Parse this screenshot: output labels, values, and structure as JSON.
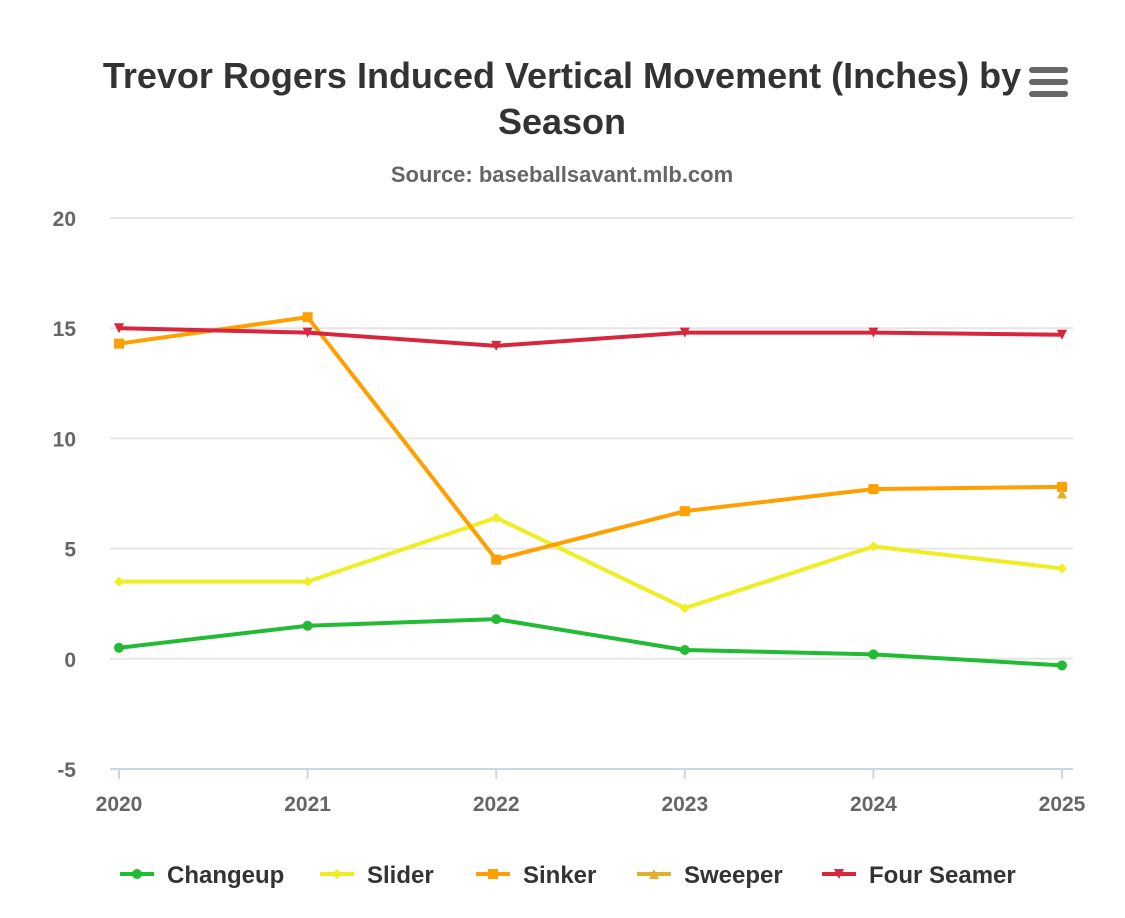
{
  "chart_data": {
    "type": "line",
    "title": "Trevor Rogers Induced Vertical Movement (Inches) by Season",
    "title_lines": [
      "Trevor Rogers Induced Vertical Movement (Inches) by",
      "Season"
    ],
    "subtitle": "Source: baseballsavant.mlb.com",
    "xlabel": "",
    "ylabel": "",
    "categories": [
      "2020",
      "2021",
      "2022",
      "2023",
      "2024",
      "2025"
    ],
    "ylim": [
      -5,
      20
    ],
    "yticks": [
      20,
      15,
      10,
      5,
      0,
      -5
    ],
    "grid": true,
    "legend_position": "bottom",
    "series": [
      {
        "name": "Changeup",
        "color": "#22bb33",
        "marker": "circle",
        "values": [
          0.5,
          1.5,
          1.8,
          0.4,
          0.2,
          -0.3
        ]
      },
      {
        "name": "Slider",
        "color": "#eeee22",
        "marker": "diamond",
        "values": [
          3.5,
          3.5,
          6.4,
          2.3,
          5.1,
          4.1
        ]
      },
      {
        "name": "Sinker",
        "color": "#ff9f00",
        "marker": "square",
        "values": [
          14.3,
          15.5,
          4.5,
          6.7,
          7.7,
          7.8
        ]
      },
      {
        "name": "Sweeper",
        "color": "#e0b030",
        "marker": "triangle",
        "values": [
          null,
          null,
          null,
          null,
          null,
          7.5
        ]
      },
      {
        "name": "Four Seamer",
        "color": "#d7263d",
        "marker": "triangle-down",
        "values": [
          15.0,
          14.8,
          14.2,
          14.8,
          14.8,
          14.7
        ]
      }
    ]
  },
  "icons": {
    "menu": "hamburger-menu-icon"
  }
}
